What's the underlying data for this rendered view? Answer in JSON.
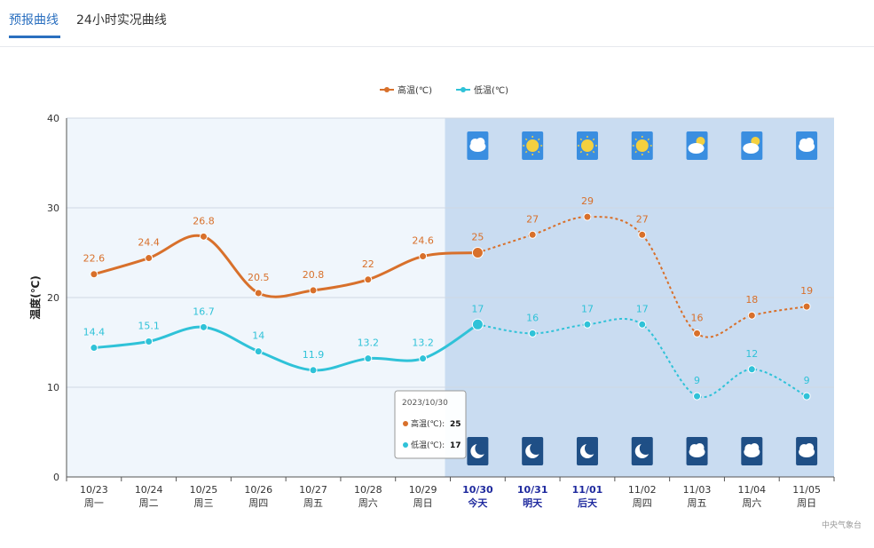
{
  "tabs": [
    {
      "label": "预报曲线",
      "active": true
    },
    {
      "label": "24小时实况曲线",
      "active": false
    }
  ],
  "corner_note": "中央气象台",
  "chart_data": {
    "type": "line",
    "title": "",
    "ylabel": "温度(℃)",
    "xlabel": "",
    "ylim": [
      0,
      40
    ],
    "yticks": [
      0,
      10,
      20,
      30,
      40
    ],
    "grid": true,
    "legend_position": "top-center",
    "categories": [
      {
        "date": "10/23",
        "day": "周一"
      },
      {
        "date": "10/24",
        "day": "周二"
      },
      {
        "date": "10/25",
        "day": "周三"
      },
      {
        "date": "10/26",
        "day": "周四"
      },
      {
        "date": "10/27",
        "day": "周五"
      },
      {
        "date": "10/28",
        "day": "周六"
      },
      {
        "date": "10/29",
        "day": "周日"
      },
      {
        "date": "10/30",
        "day": "今天"
      },
      {
        "date": "10/31",
        "day": "明天"
      },
      {
        "date": "11/01",
        "day": "后天"
      },
      {
        "date": "11/02",
        "day": "周四"
      },
      {
        "date": "11/03",
        "day": "周五"
      },
      {
        "date": "11/04",
        "day": "周六"
      },
      {
        "date": "11/05",
        "day": "周日"
      }
    ],
    "forecast_start_index": 7,
    "highlight_date_indices": [
      7,
      8,
      9
    ],
    "series": [
      {
        "name": "高温(℃)",
        "color": "#d8702b",
        "values": [
          22.6,
          24.4,
          26.8,
          20.5,
          20.8,
          22,
          24.6,
          25,
          27,
          29,
          27,
          16,
          18,
          19
        ],
        "labels": [
          "22.6",
          "24.4",
          "26.8",
          "20.5",
          "20.8",
          "22",
          "24.6",
          "25",
          "27",
          "29",
          "27",
          "16",
          "18",
          "19"
        ]
      },
      {
        "name": "低温(℃)",
        "color": "#2fc2d8",
        "values": [
          14.4,
          15.1,
          16.7,
          14,
          11.9,
          13.2,
          13.2,
          17,
          16,
          17,
          17,
          9,
          12,
          9
        ],
        "labels": [
          "14.4",
          "15.1",
          "16.7",
          "14",
          "11.9",
          "13.2",
          "13.2",
          "17",
          "16",
          "17",
          "17",
          "9",
          "12",
          "9"
        ]
      }
    ],
    "day_weather_icons": [
      "cloudy-icon",
      "sunny-icon",
      "sunny-icon",
      "sunny-icon",
      "partly-cloudy-icon",
      "partly-cloudy-icon",
      "cloudy-icon"
    ],
    "night_weather_icons": [
      "moon-icon",
      "moon-icon",
      "moon-icon",
      "moon-icon",
      "cloudy-icon",
      "cloudy-icon",
      "cloudy-icon"
    ],
    "tooltip": {
      "title": "2023/10/30",
      "rows": [
        {
          "label": "高温(℃):",
          "value": "25",
          "color": "#d8702b"
        },
        {
          "label": "低温(℃):",
          "value": "17",
          "color": "#2fc2d8"
        }
      ]
    },
    "colors": {
      "history_bg": "#f0f6fc",
      "forecast_bg": "#c9dcf1",
      "grid": "#cfd8e3",
      "axis_text": "#333333",
      "highlight_date": "#1f2a9e"
    }
  }
}
